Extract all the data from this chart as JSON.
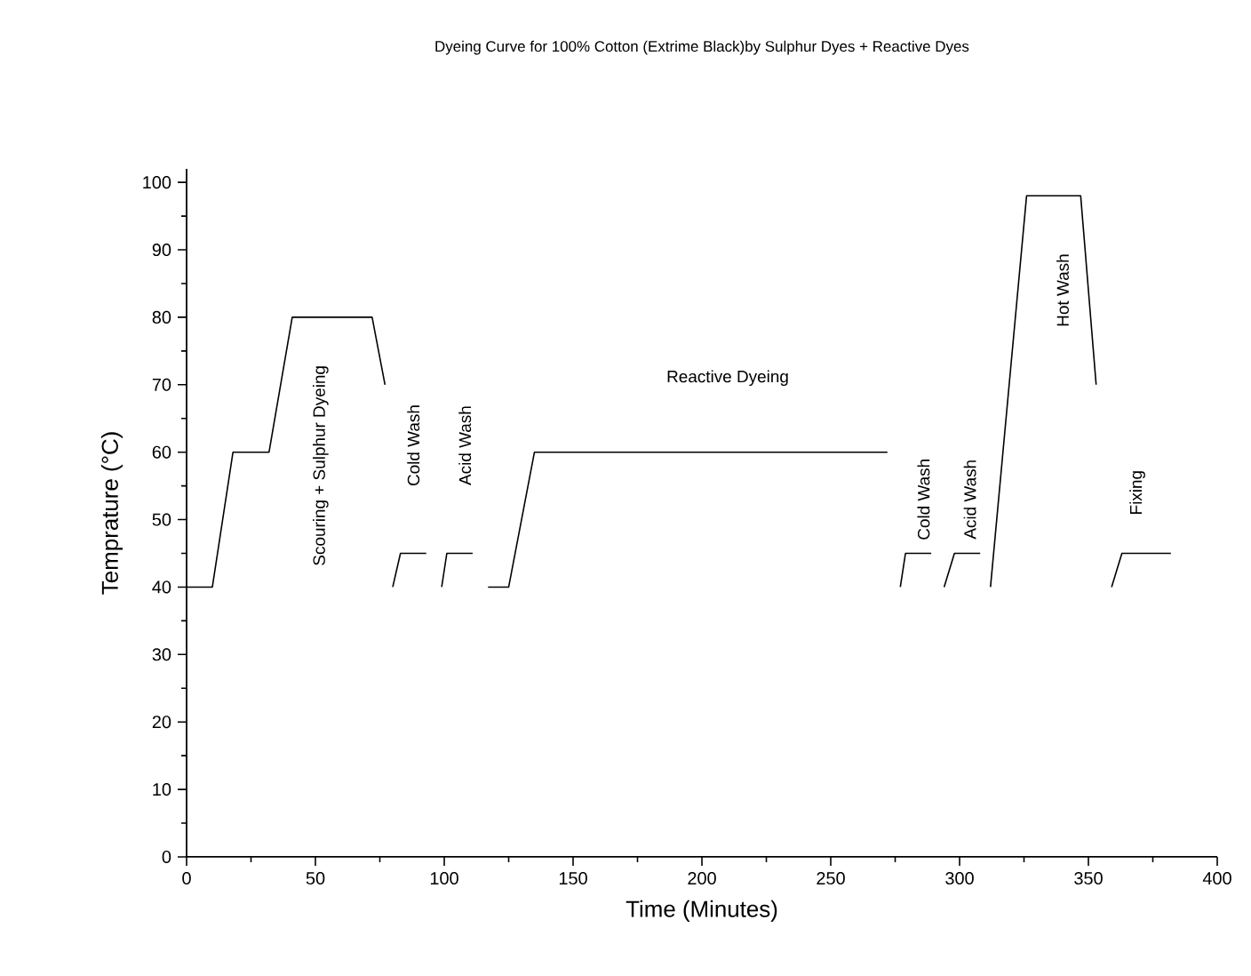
{
  "chart_data": {
    "type": "line",
    "title": "Dyeing Curve for 100% Cotton (Extrime Black)by Sulphur Dyes + Reactive Dyes",
    "xlabel": "Time (Minutes)",
    "ylabel": "Temprature (°C)",
    "xlim": [
      0,
      400
    ],
    "ylim": [
      0,
      102
    ],
    "xticks": [
      0,
      50,
      100,
      150,
      200,
      250,
      300,
      350,
      400
    ],
    "yticks": [
      0,
      10,
      20,
      30,
      40,
      50,
      60,
      70,
      80,
      90,
      100
    ],
    "grid": false,
    "marker": "none",
    "line_style": "solid",
    "series": [
      {
        "color": "#000000",
        "x": [
          0,
          10,
          18,
          32,
          41,
          72,
          77
        ],
        "values": [
          40,
          40,
          60,
          60,
          80,
          80,
          70
        ]
      },
      {
        "color": "#000000",
        "x": [
          80,
          83,
          93
        ],
        "values": [
          40,
          45,
          45
        ]
      },
      {
        "color": "#000000",
        "x": [
          99,
          101,
          111
        ],
        "values": [
          40,
          45,
          45
        ]
      },
      {
        "color": "#000000",
        "x": [
          117,
          125,
          135,
          272
        ],
        "values": [
          40,
          40,
          60,
          60
        ]
      },
      {
        "color": "#000000",
        "x": [
          277,
          279,
          289
        ],
        "values": [
          40,
          45,
          45
        ]
      },
      {
        "color": "#000000",
        "x": [
          294,
          298,
          308
        ],
        "values": [
          40,
          45,
          45
        ]
      },
      {
        "color": "#000000",
        "x": [
          312,
          326,
          347,
          353
        ],
        "values": [
          40,
          98,
          98,
          70
        ]
      },
      {
        "color": "#000000",
        "x": [
          359,
          363,
          382
        ],
        "values": [
          40,
          45,
          45
        ]
      }
    ],
    "annotations": [
      "Scouring + Sulphur Dyeing",
      "Cold Wash",
      "Reactive Dyeing",
      "Acid Wash",
      "Cold Wash",
      "Acid Wash",
      "Hot Wash",
      "Fixing"
    ]
  }
}
